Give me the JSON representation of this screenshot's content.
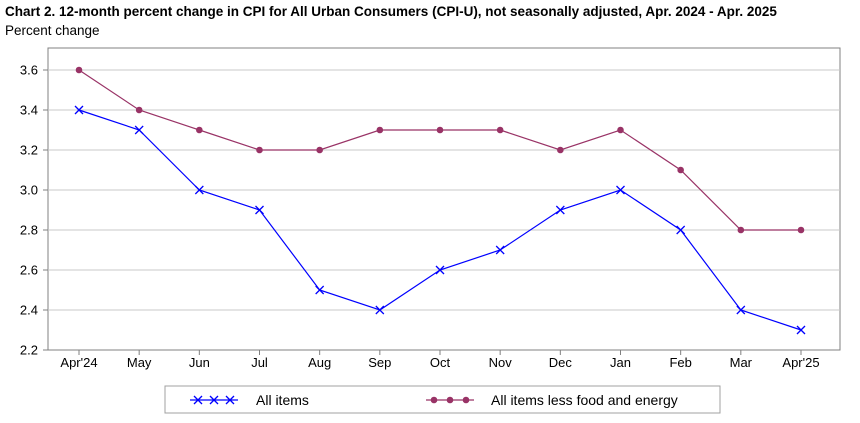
{
  "chart_data": {
    "type": "line",
    "title": "Chart 2. 12-month percent change in CPI for All Urban Consumers (CPI-U), not seasonally adjusted, Apr. 2024 - Apr. 2025",
    "ylabel": "Percent change",
    "xlabel": "",
    "categories": [
      "Apr'24",
      "May",
      "Jun",
      "Jul",
      "Aug",
      "Sep",
      "Oct",
      "Nov",
      "Dec",
      "Jan",
      "Feb",
      "Mar",
      "Apr'25"
    ],
    "ylim": [
      2.2,
      3.6
    ],
    "yticks": [
      "2.2",
      "2.4",
      "2.6",
      "2.8",
      "3.0",
      "3.2",
      "3.4",
      "3.6"
    ],
    "grid": true,
    "legend_position": "bottom",
    "series": [
      {
        "name": "All items",
        "color": "#0000ff",
        "marker": "x",
        "values": [
          3.4,
          3.3,
          3.0,
          2.9,
          2.5,
          2.4,
          2.6,
          2.7,
          2.9,
          3.0,
          2.8,
          2.4,
          2.3
        ]
      },
      {
        "name": "All items less food and energy",
        "color": "#993366",
        "marker": "circle",
        "values": [
          3.6,
          3.4,
          3.3,
          3.2,
          3.2,
          3.3,
          3.3,
          3.3,
          3.2,
          3.3,
          3.1,
          2.8,
          2.8
        ]
      }
    ]
  }
}
